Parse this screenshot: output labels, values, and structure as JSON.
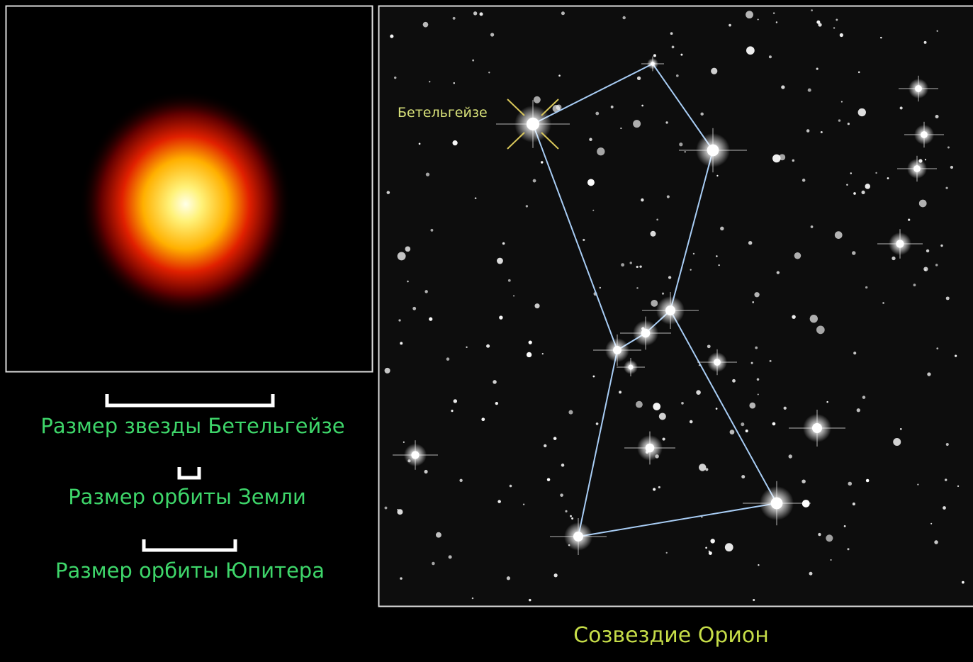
{
  "star_panel": {
    "label": "Бетельгейзе"
  },
  "scale_items": [
    {
      "label": "Размер звезды Бетельгейзе"
    },
    {
      "label": "Размер орбиты Земли"
    },
    {
      "label": "Размер орбиты Юпитера"
    }
  ],
  "caption": "Созвездие  Орион"
}
